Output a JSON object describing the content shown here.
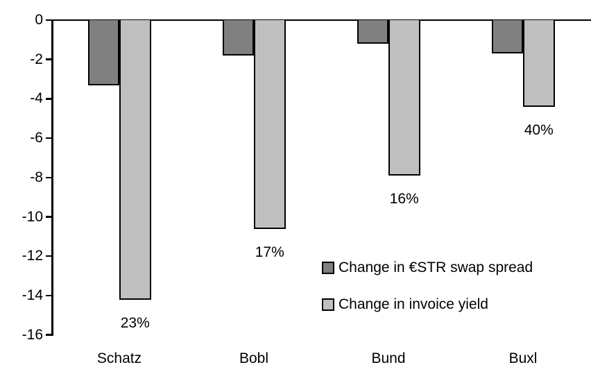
{
  "chart_data": {
    "type": "bar",
    "title": "",
    "xlabel": "",
    "ylabel": "",
    "categories": [
      "Schatz",
      "Bobl",
      "Bund",
      "Buxl"
    ],
    "series": [
      {
        "name": "Change in €STR swap spread",
        "color": "#808080",
        "values": [
          -3.3,
          -1.8,
          -1.2,
          -1.7
        ]
      },
      {
        "name": "Change in invoice yield",
        "color": "#BFBFBF",
        "values": [
          -14.2,
          -10.6,
          -7.9,
          -4.4
        ],
        "labels": [
          "23%",
          "17%",
          "16%",
          "40%"
        ]
      }
    ],
    "yticks": [
      0,
      -2,
      -4,
      -6,
      -8,
      -10,
      -12,
      -14,
      -16
    ],
    "ylim": [
      -16,
      0
    ],
    "grid": false,
    "legend_position": "center-right-inside",
    "axis_color": "#000000",
    "bar_border_color": "#000000",
    "background": "#FFFFFF"
  }
}
